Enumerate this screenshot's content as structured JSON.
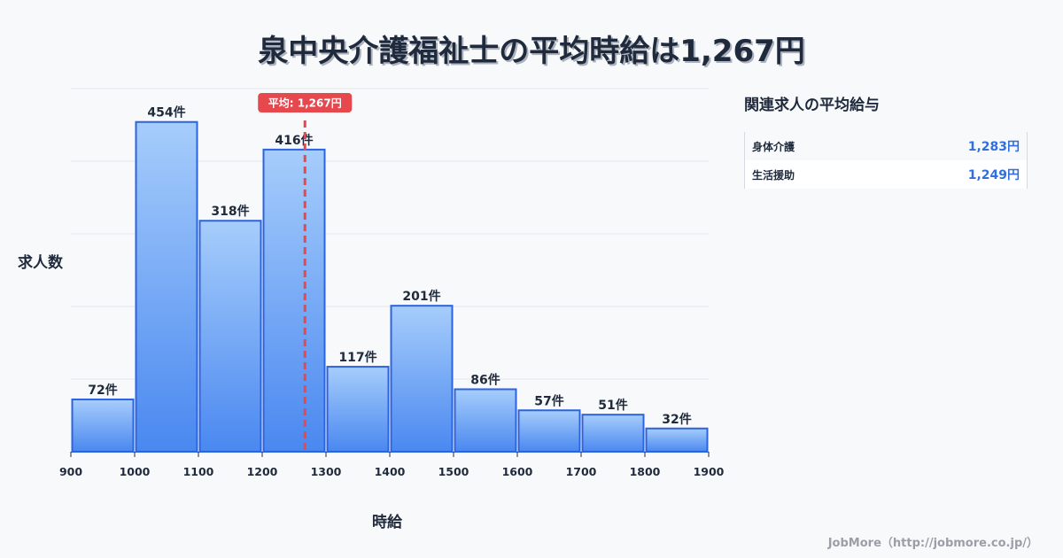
{
  "title": "泉中央介護福祉士の平均時給は1,267円",
  "axes": {
    "ylabel": "求人数",
    "xlabel": "時給"
  },
  "average_label": "平均: 1,267円",
  "side_panel": {
    "title": "関連求人の平均給与",
    "rows": [
      {
        "label": "身体介護",
        "value": "1,283円"
      },
      {
        "label": "生活援助",
        "value": "1,249円"
      }
    ]
  },
  "footer": "JobMore（http://jobmore.co.jp/）",
  "colors": {
    "bar_top": "#a6cdfb",
    "bar_bottom": "#4a88f0",
    "bar_border": "#2b63e0",
    "average_line": "#e5484d",
    "grid": "#e3e6ec",
    "accent_value": "#2f6fe0"
  },
  "chart_data": {
    "type": "bar",
    "subtype": "histogram",
    "title": "泉中央介護福祉士の平均時給は1,267円",
    "xlabel": "時給",
    "ylabel": "求人数",
    "x_ticks": [
      900,
      1000,
      1100,
      1200,
      1300,
      1400,
      1500,
      1600,
      1700,
      1800,
      1900
    ],
    "bins": [
      [
        900,
        1000
      ],
      [
        1000,
        1100
      ],
      [
        1100,
        1200
      ],
      [
        1200,
        1300
      ],
      [
        1300,
        1400
      ],
      [
        1400,
        1500
      ],
      [
        1500,
        1600
      ],
      [
        1600,
        1700
      ],
      [
        1700,
        1800
      ],
      [
        1800,
        1900
      ]
    ],
    "values": [
      72,
      454,
      318,
      416,
      117,
      201,
      86,
      57,
      51,
      32
    ],
    "value_labels": [
      "72件",
      "454件",
      "318件",
      "416件",
      "117件",
      "201件",
      "86件",
      "57件",
      "51件",
      "32件"
    ],
    "ylim": [
      0,
      500
    ],
    "grid": true,
    "gridlines_y": [
      100,
      200,
      300,
      400,
      500
    ],
    "annotation": {
      "type": "vline",
      "x": 1267,
      "label": "平均: 1,267円",
      "style": "dashed",
      "color": "#e5484d"
    }
  }
}
